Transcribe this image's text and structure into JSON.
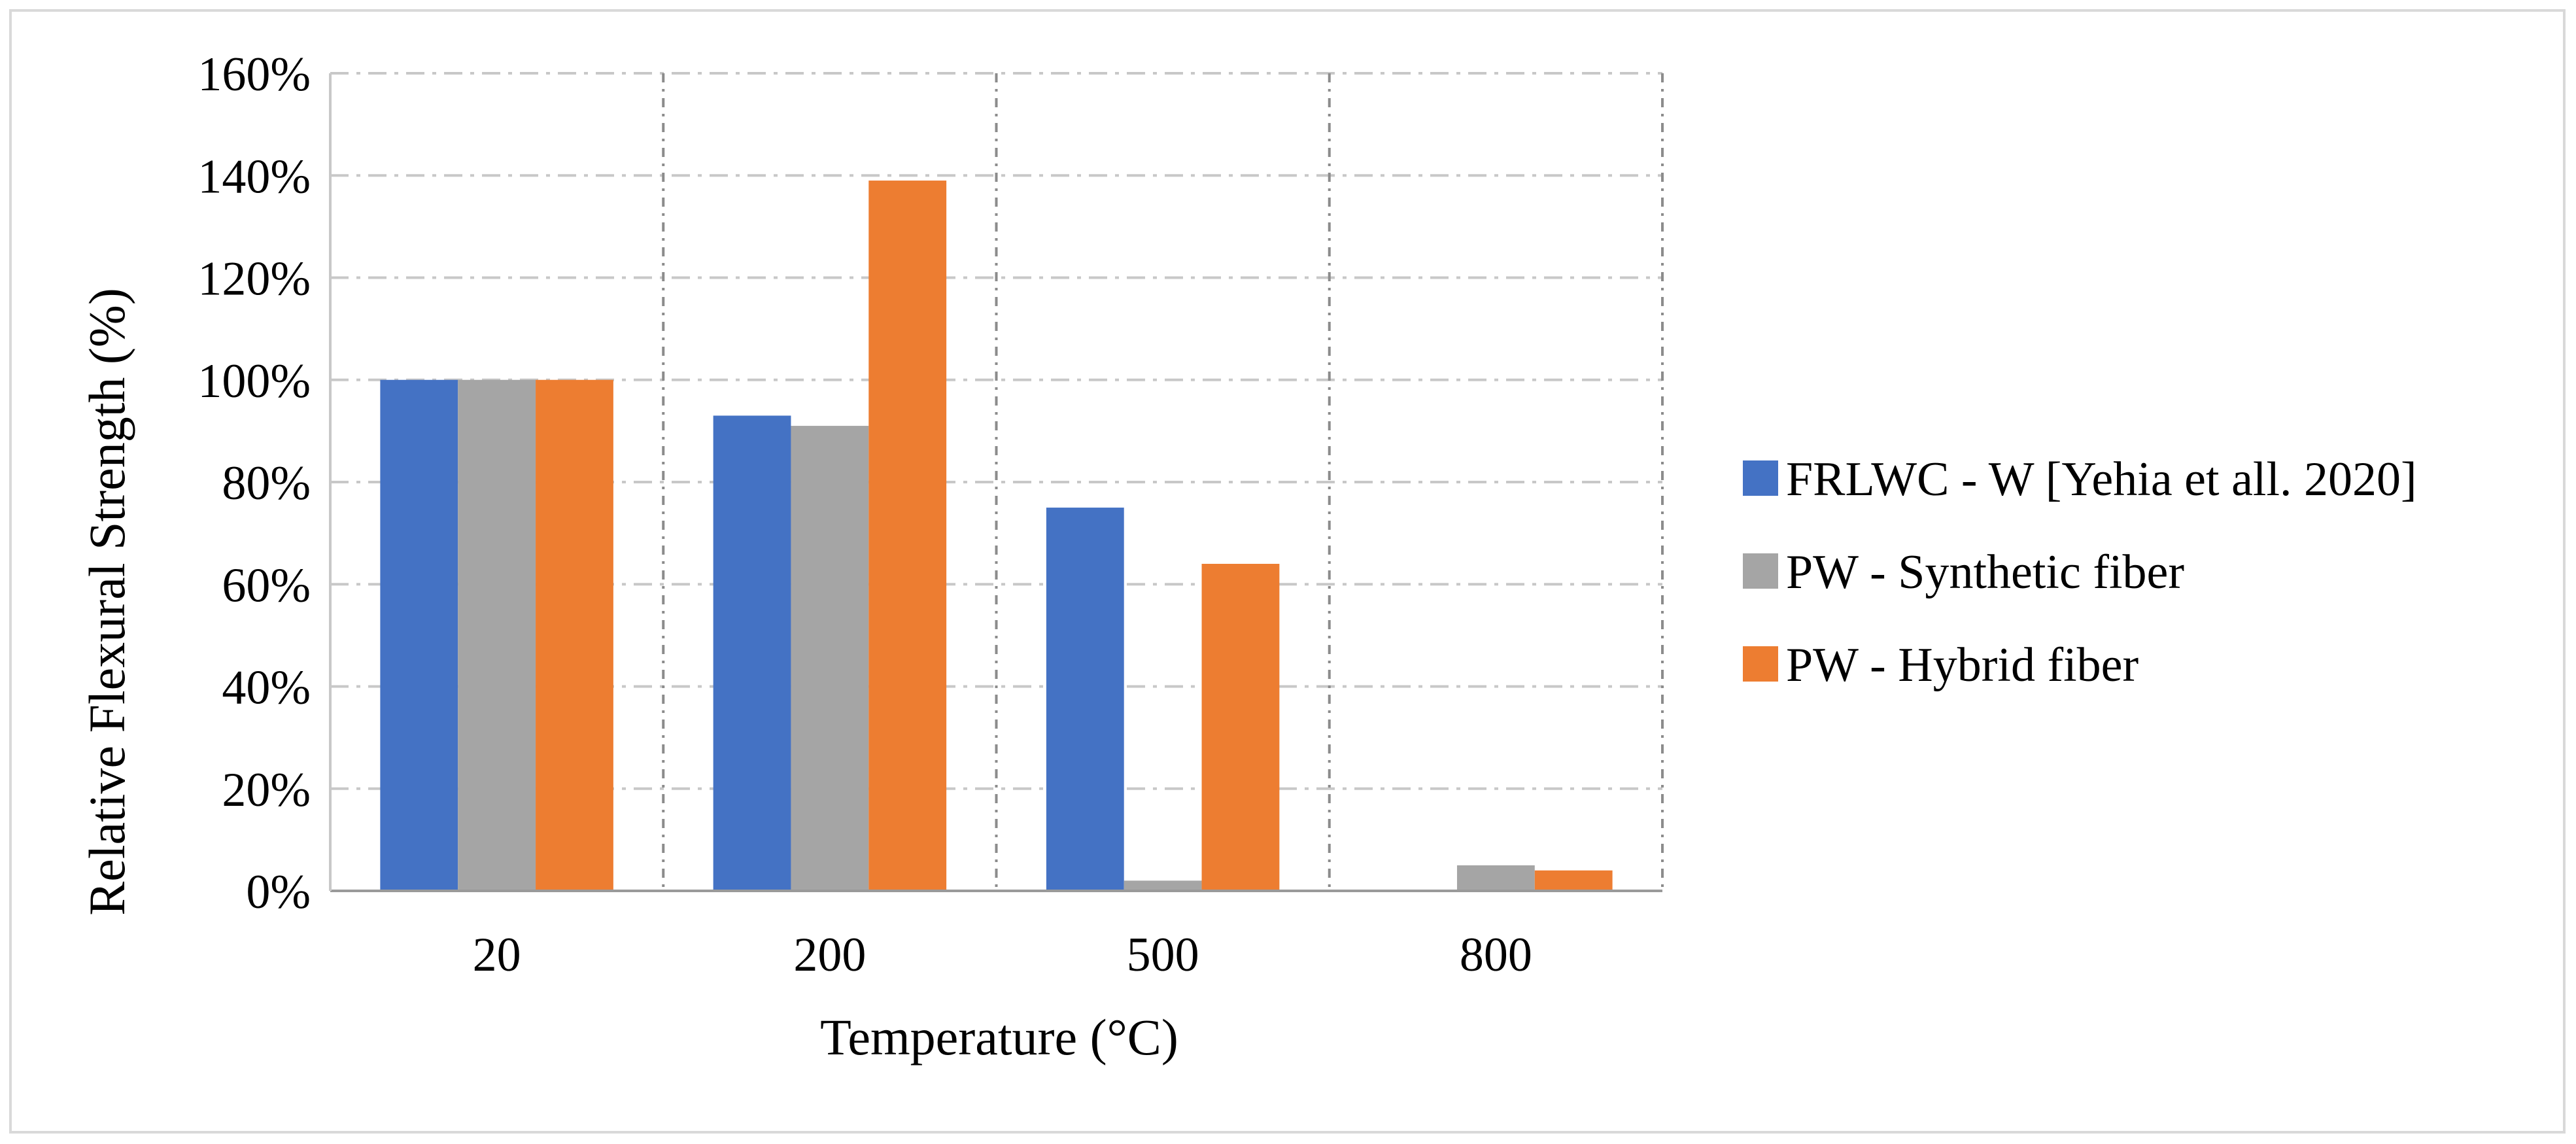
{
  "chart_data": {
    "type": "bar",
    "title": "",
    "xlabel": "Temperature (°C)",
    "ylabel": "Relative Flexural Strength  (%)",
    "categories": [
      "20",
      "200",
      "500",
      "800"
    ],
    "series": [
      {
        "name": "FRLWC - W [Yehia et all. 2020]",
        "color": "#4472C4",
        "values": [
          100,
          93,
          75,
          0
        ]
      },
      {
        "name": "PW - Synthetic fiber",
        "color": "#A5A5A5",
        "values": [
          100,
          91,
          2,
          5
        ]
      },
      {
        "name": "PW - Hybrid fiber",
        "color": "#ED7D31",
        "values": [
          100,
          139,
          64,
          4
        ]
      }
    ],
    "ylim": [
      0,
      160
    ],
    "yticks": [
      "0%",
      "20%",
      "40%",
      "60%",
      "80%",
      "100%",
      "120%",
      "140%",
      "160%"
    ],
    "grid": true,
    "legend_position": "right"
  }
}
